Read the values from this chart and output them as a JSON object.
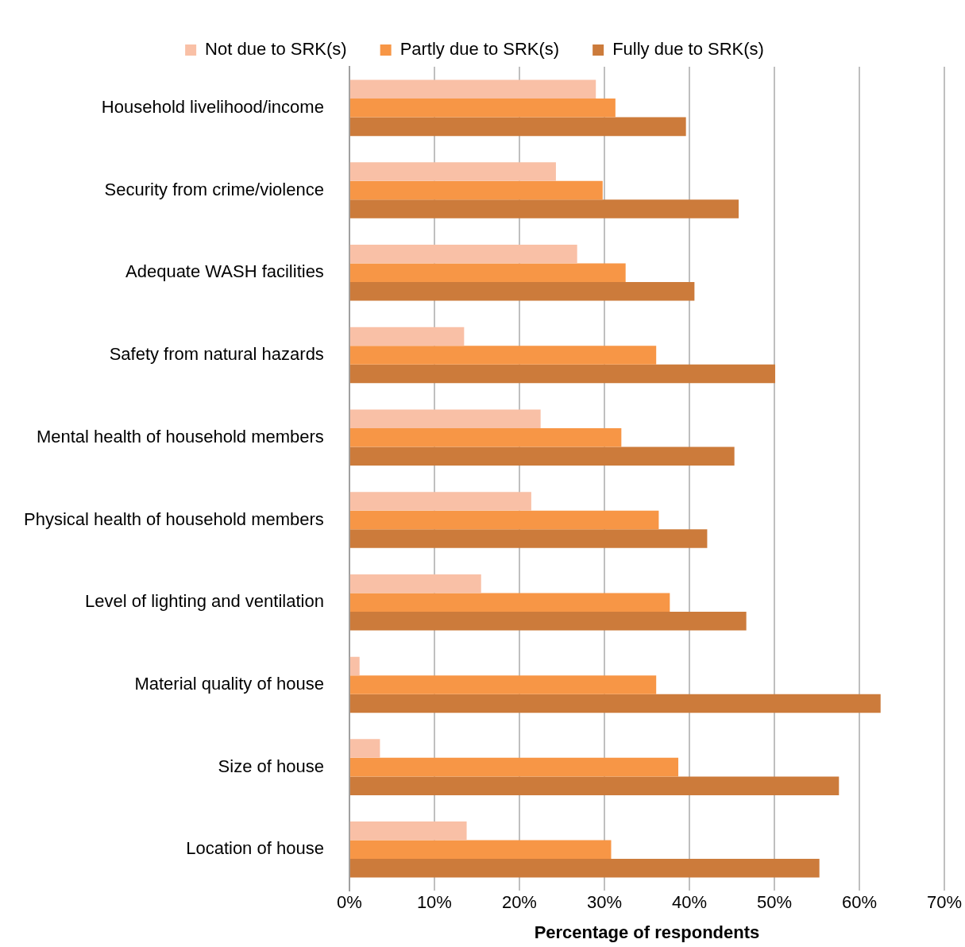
{
  "chart_data": {
    "type": "bar",
    "orientation": "horizontal",
    "xlabel": "Percentage of respondents",
    "categories": [
      "Household livelihood/income",
      "Security from crime/violence",
      "Adequate WASH facilities",
      "Safety from natural hazards",
      "Mental health of household members",
      "Physical health of household members",
      "Level of lighting and ventilation",
      "Material quality of house",
      "Size of house",
      "Location of house"
    ],
    "series": [
      {
        "name": "Not due to SRK(s)",
        "color": "#f9c0a6",
        "values": [
          29,
          24.3,
          26.8,
          13.5,
          22.5,
          21.4,
          15.5,
          1.2,
          3.6,
          13.8
        ]
      },
      {
        "name": "Partly due to SRK(s)",
        "color": "#f79646",
        "values": [
          31.3,
          29.8,
          32.5,
          36.1,
          32,
          36.4,
          37.7,
          36.1,
          38.7,
          30.8
        ]
      },
      {
        "name": "Fully due to SRK(s)",
        "color": "#cc7b3b",
        "values": [
          39.6,
          45.8,
          40.6,
          50.1,
          45.3,
          42.1,
          46.7,
          62.5,
          57.6,
          55.3
        ]
      }
    ],
    "xlim": [
      0,
      70
    ],
    "xticks": [
      {
        "value": 0,
        "label": "0%"
      },
      {
        "value": 10,
        "label": "10%"
      },
      {
        "value": 20,
        "label": "20%"
      },
      {
        "value": 30,
        "label": "30%"
      },
      {
        "value": 40,
        "label": "40%"
      },
      {
        "value": 50,
        "label": "50%"
      },
      {
        "value": 60,
        "label": "60%"
      },
      {
        "value": 70,
        "label": "70%"
      }
    ],
    "grid": "x",
    "legend": "top"
  }
}
